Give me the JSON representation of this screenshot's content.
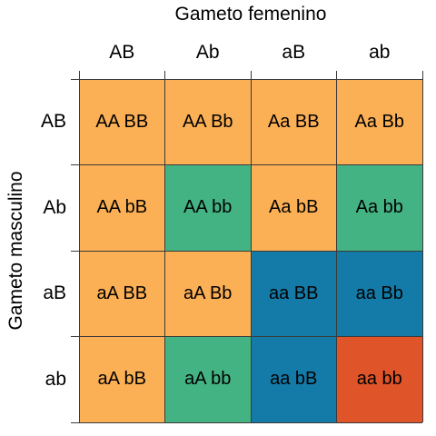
{
  "top_axis_title": "Gameto femenino",
  "side_axis_title": "Gameto masculino",
  "columns": [
    "AB",
    "Ab",
    "aB",
    "ab"
  ],
  "rows": [
    "AB",
    "Ab",
    "aB",
    "ab"
  ],
  "colors": {
    "orange": "#fbb055",
    "green": "#44b384",
    "blue": "#147ba8",
    "red": "#df5428"
  },
  "cells": [
    [
      {
        "text": "AA BB",
        "color": "orange"
      },
      {
        "text": "AA Bb",
        "color": "orange"
      },
      {
        "text": "Aa BB",
        "color": "orange"
      },
      {
        "text": "Aa Bb",
        "color": "orange"
      }
    ],
    [
      {
        "text": "AA bB",
        "color": "orange"
      },
      {
        "text": "AA bb",
        "color": "green"
      },
      {
        "text": "Aa bB",
        "color": "orange"
      },
      {
        "text": "Aa bb",
        "color": "green"
      }
    ],
    [
      {
        "text": "aA BB",
        "color": "orange"
      },
      {
        "text": "aA Bb",
        "color": "orange"
      },
      {
        "text": "aa BB",
        "color": "blue"
      },
      {
        "text": "aa Bb",
        "color": "blue"
      }
    ],
    [
      {
        "text": "aA bB",
        "color": "orange"
      },
      {
        "text": "aA bb",
        "color": "green"
      },
      {
        "text": "aa bB",
        "color": "blue"
      },
      {
        "text": "aa bb",
        "color": "red"
      }
    ]
  ]
}
